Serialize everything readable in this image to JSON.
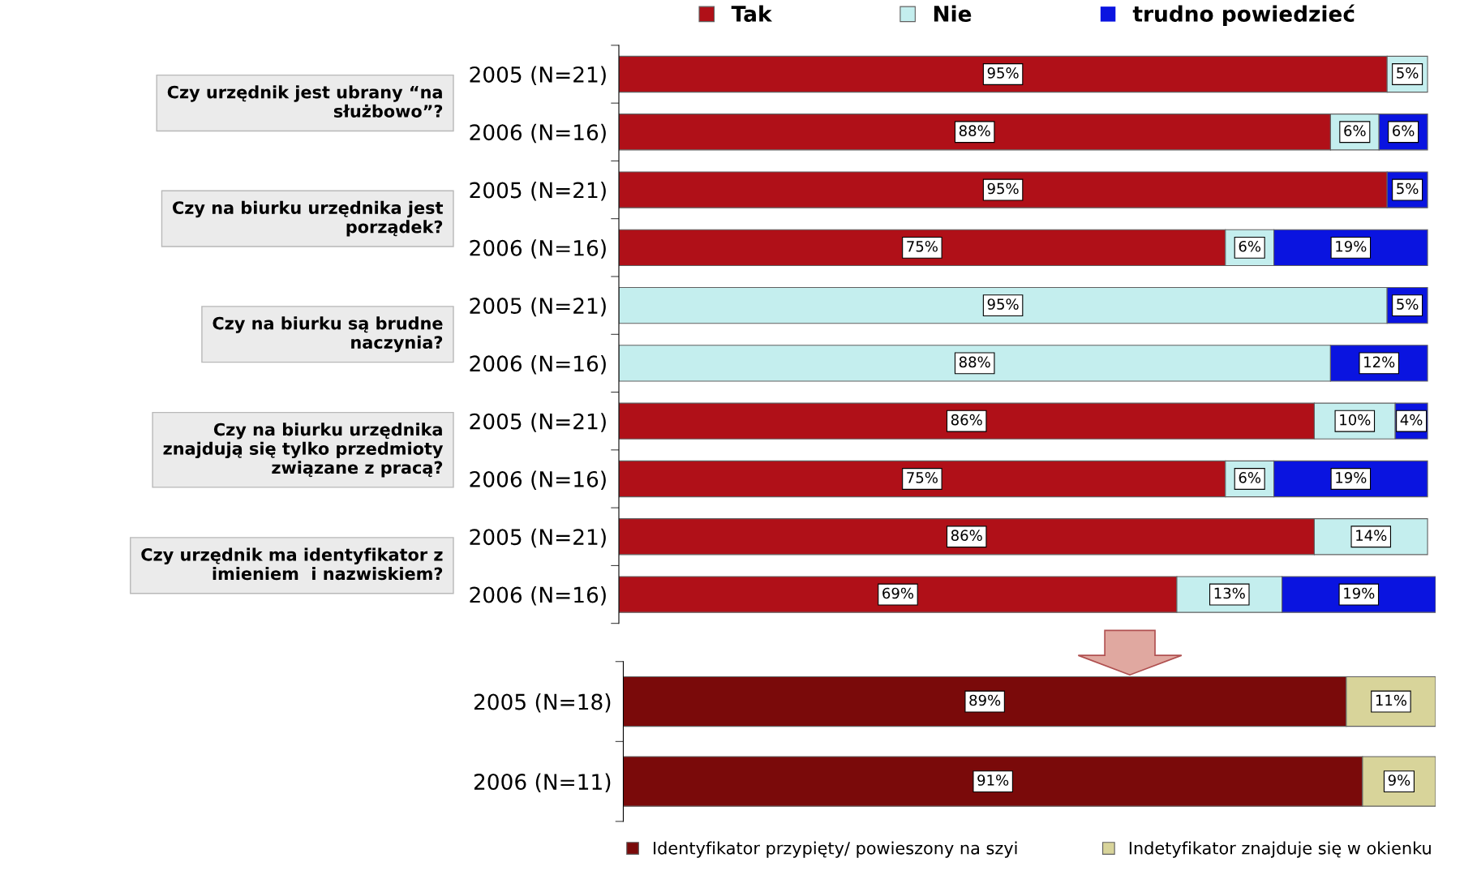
{
  "chart_data": [
    {
      "type": "bar",
      "orientation": "horizontal",
      "stacked": true,
      "tick_labels": "y",
      "legend": "top",
      "categories": [
        "2005 (N=21)",
        "2006 (N=16)",
        "2005 (N=21)",
        "2006 (N=16)",
        "2005 (N=21)",
        "2006 (N=16)",
        "2005 (N=21)",
        "2006 (N=16)",
        "2005 (N=21)",
        "2006 (N=16)"
      ],
      "series": [
        {
          "name": "Tak",
          "color": "#b01018",
          "values": [
            95,
            88,
            95,
            75,
            0,
            0,
            86,
            75,
            86,
            69
          ],
          "value_labels": [
            "95%",
            "88%",
            "95%",
            "75%",
            null,
            null,
            "86%",
            "75%",
            "86%",
            "69%"
          ]
        },
        {
          "name": "Nie",
          "color": "#c4eeee",
          "values": [
            5,
            6,
            0,
            6,
            95,
            88,
            10,
            6,
            14,
            13
          ],
          "value_labels": [
            "5%",
            "6%",
            null,
            "6%",
            "95%",
            "88%",
            "10%",
            "6%",
            "14%",
            "13%"
          ]
        },
        {
          "name": "trudno powiedzieć",
          "color": "#0a14e0",
          "values": [
            0,
            6,
            5,
            19,
            5,
            12,
            4,
            19,
            0,
            19
          ],
          "value_labels": [
            null,
            "6%",
            "5%",
            "19%",
            "5%",
            "12%",
            "4%",
            "19%",
            null,
            "19%"
          ]
        }
      ],
      "annotations": [
        "Czy urzędnik jest ubrany “na\nsłużbowo”?",
        "Czy na biurku urzędnika jest\nporządek?",
        "Czy na biurku są brudne\nnaczynia?",
        "Czy na biurku urzędnika\nznajdują się tylko przedmioty\nzwiązane z pracą?",
        "Czy urzędnik ma identyfikator z\nimieniem  i nazwiskiem?"
      ]
    },
    {
      "type": "bar",
      "orientation": "horizontal",
      "stacked": true,
      "tick_labels": "y",
      "legend": "bottom",
      "categories": [
        "2005 (N=18)",
        "2006 (N=11)"
      ],
      "series": [
        {
          "name": "Identyfikator przypięty/ powieszony na szyi",
          "color": "#7a0a0a",
          "values": [
            89,
            91
          ],
          "value_labels": [
            "89%",
            "91%"
          ]
        },
        {
          "name": "Indetyfikator znajduje się w okienku",
          "color": "#d8d49a",
          "values": [
            11,
            9
          ],
          "value_labels": [
            "11%",
            "9%"
          ]
        }
      ]
    }
  ]
}
